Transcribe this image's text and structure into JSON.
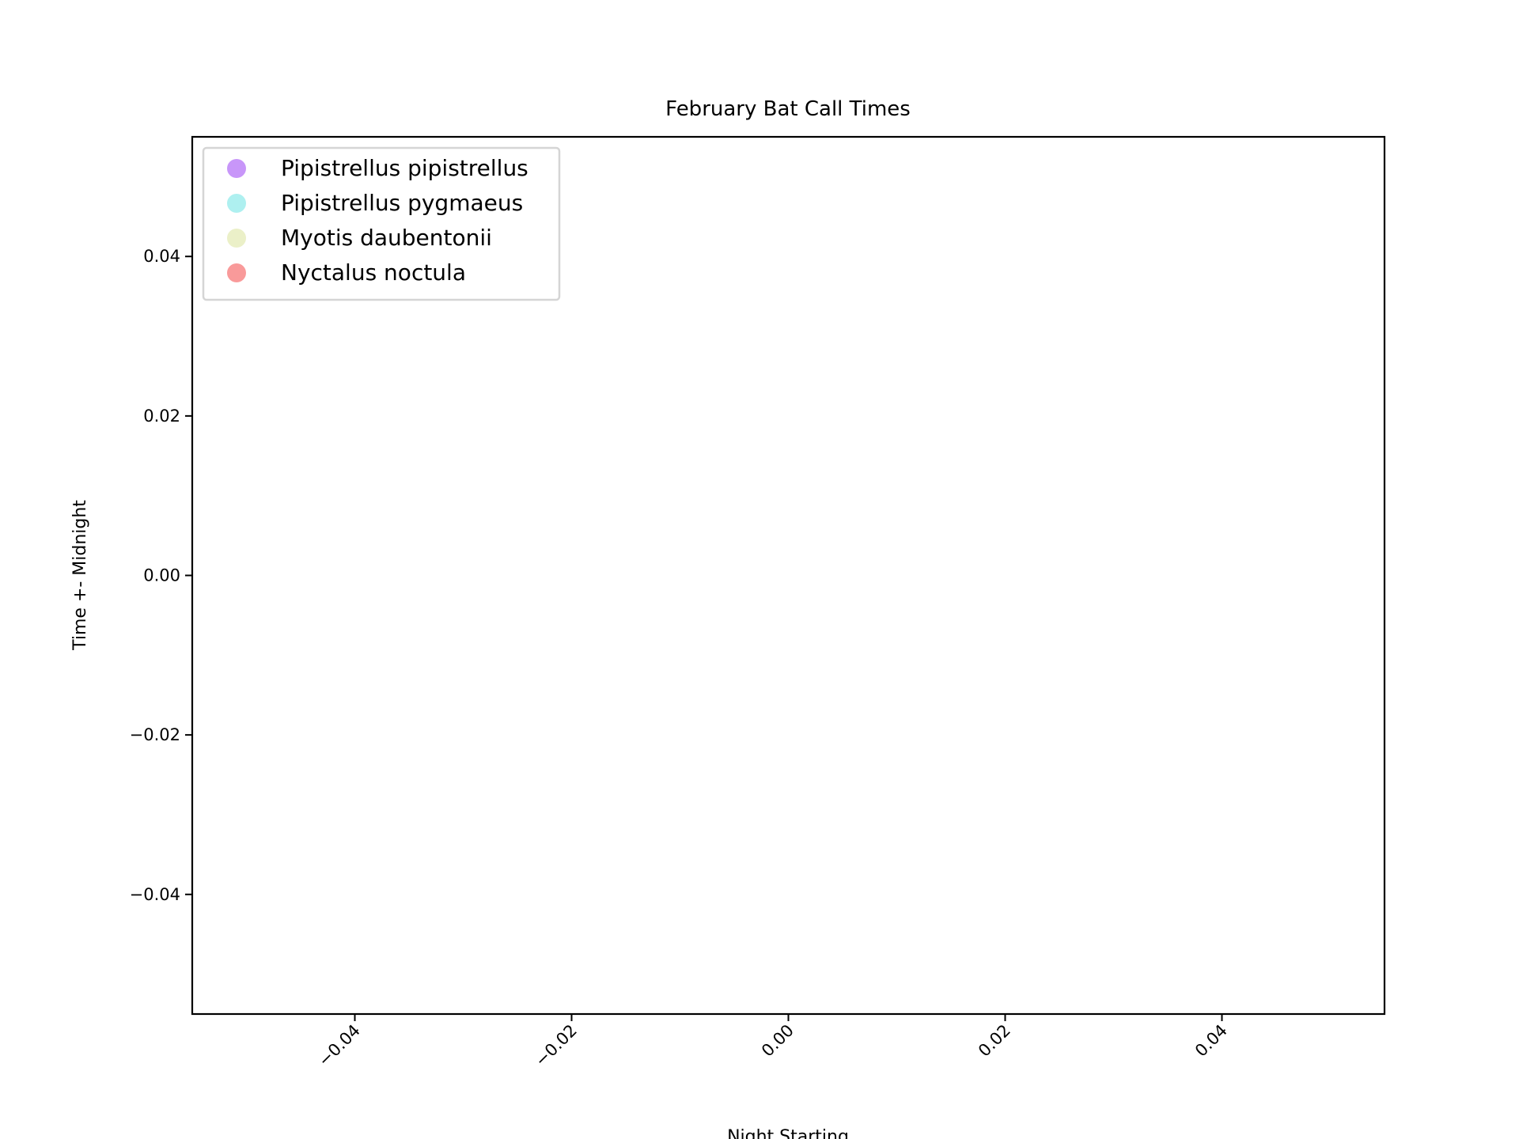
{
  "chart_data": {
    "type": "scatter",
    "title": "February Bat Call Times",
    "xlabel": "Night Starting",
    "ylabel": "Time +- Midnight",
    "x": [],
    "series": [
      {
        "name": "Pipistrellus pipistrellus",
        "color": "#c896f9",
        "values": []
      },
      {
        "name": "Pipistrellus pygmaeus",
        "color": "#aef0f0",
        "values": []
      },
      {
        "name": "Myotis daubentonii",
        "color": "#ebf0c8",
        "values": []
      },
      {
        "name": "Nyctalus noctula",
        "color": "#f99a9a",
        "values": []
      }
    ],
    "xlim": [
      -0.055,
      0.055
    ],
    "xticks": [
      {
        "value": -0.04,
        "label": "−0.04"
      },
      {
        "value": -0.02,
        "label": "−0.02"
      },
      {
        "value": 0,
        "label": "0.00"
      },
      0.02,
      0.04
    ],
    "ylim": [
      -0.055,
      0.055
    ],
    "yticks": [
      {
        "value": -0.04,
        "label": "−0.04"
      },
      {
        "value": -0.02,
        "label": "−0.02"
      },
      {
        "value": 0,
        "label": "0.00"
      },
      0.02,
      0.04
    ],
    "grid": false,
    "legend": "upper left"
  }
}
